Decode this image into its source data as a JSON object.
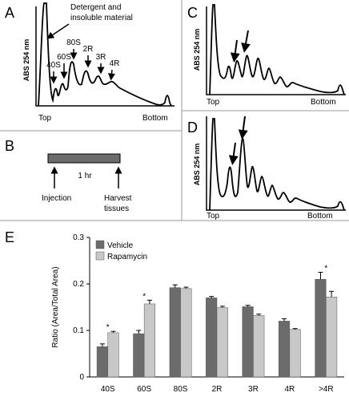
{
  "panel_a": {
    "label": "A",
    "y_label": "ABS 254 nm",
    "x_start": "Top",
    "x_end": "Bottom",
    "annotation": [
      "Detergent and",
      "insoluble material"
    ],
    "peaks": [
      "40S",
      "60S",
      "80S",
      "2R",
      "3R",
      "4R"
    ]
  },
  "panel_b": {
    "label": "B",
    "duration": "1 hr",
    "start": "Injection",
    "end": [
      "Harvest",
      "tissues"
    ]
  },
  "panel_c": {
    "label": "C",
    "y_label": "ABS 254 nm",
    "x_start": "Top",
    "x_end": "Bottom"
  },
  "panel_d": {
    "label": "D",
    "y_label": "ABS 254 nm",
    "x_start": "Top",
    "x_end": "Bottom"
  },
  "panel_e": {
    "label": "E"
  },
  "chart_data": {
    "type": "bar",
    "ylabel": "Ratio (Area/Total Area)",
    "categories": [
      "40S",
      "60S",
      "80S",
      "2R",
      "3R",
      "4R",
      ">4R"
    ],
    "series": [
      {
        "name": "Vehicle",
        "color": "#6b6b6b",
        "values": [
          0.065,
          0.093,
          0.192,
          0.17,
          0.151,
          0.12,
          0.21
        ],
        "errors": [
          0.006,
          0.007,
          0.006,
          0.003,
          0.003,
          0.005,
          0.015
        ]
      },
      {
        "name": "Rapamycin",
        "color": "#c8c8c8",
        "values": [
          0.095,
          0.157,
          0.19,
          0.149,
          0.132,
          0.102,
          0.172
        ],
        "errors": [
          0.003,
          0.008,
          0.003,
          0.003,
          0.003,
          0.002,
          0.012
        ]
      }
    ],
    "annotations": [
      {
        "text": "*",
        "x": "40S"
      },
      {
        "text": "*",
        "x": "60S"
      },
      {
        "text": "*",
        "x": ">4R"
      }
    ],
    "ylim": [
      0,
      0.3
    ],
    "yticks": [
      0,
      0.1,
      0.2,
      0.3
    ],
    "legend": "upper-left"
  }
}
